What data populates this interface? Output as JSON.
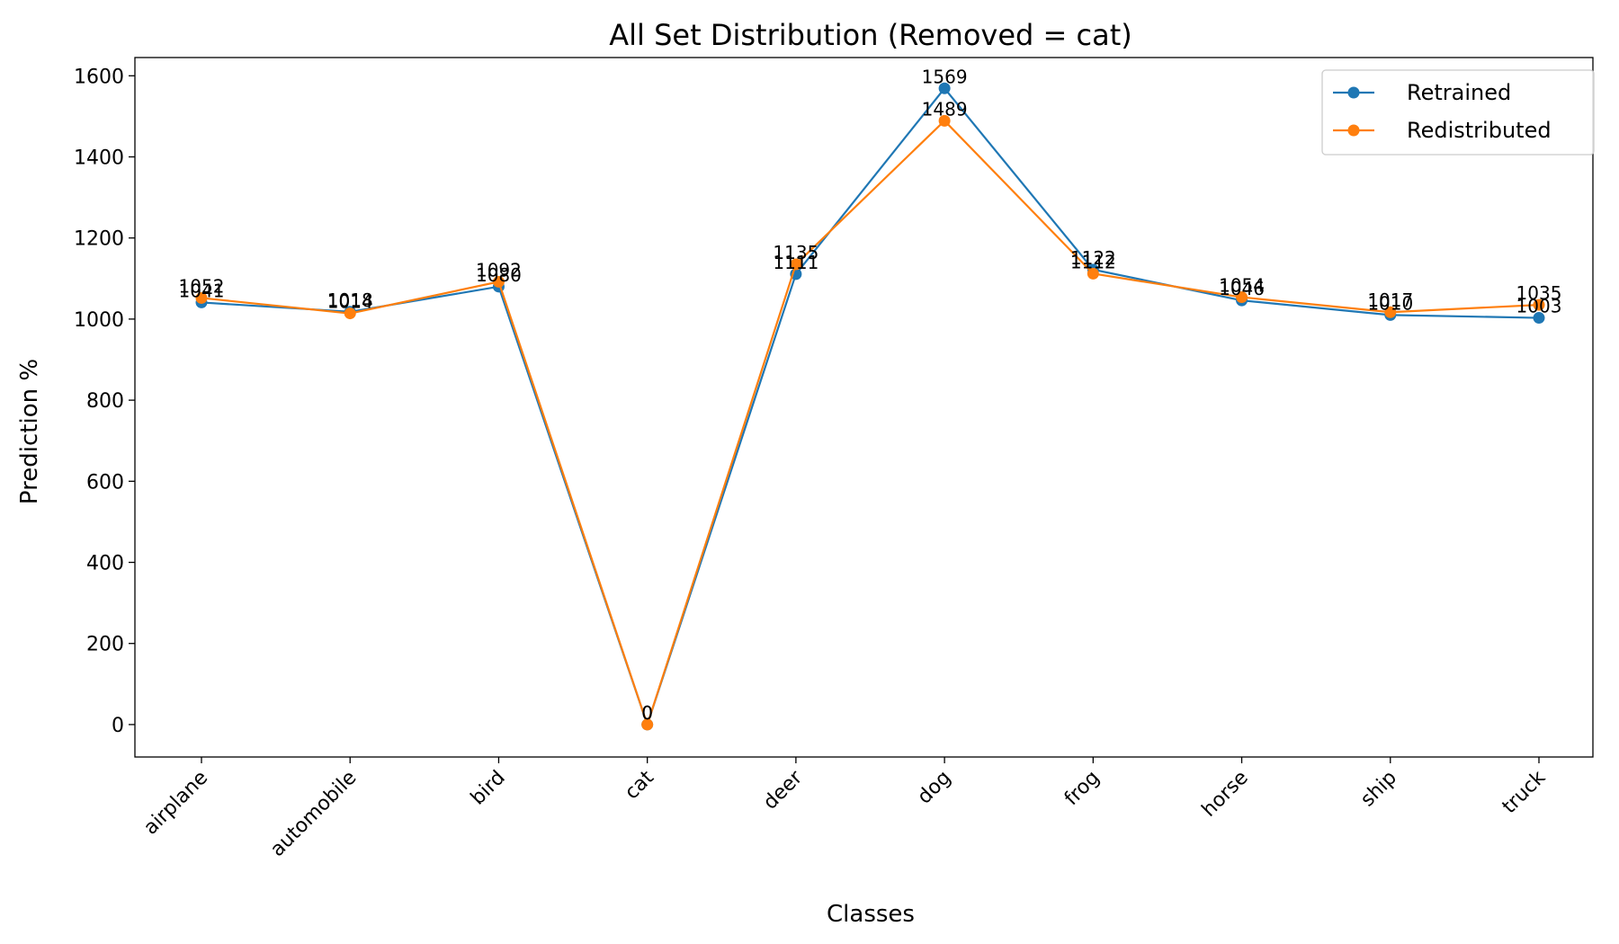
{
  "chart_data": {
    "type": "line",
    "title": "All Set Distribution (Removed = cat)",
    "xlabel": "Classes",
    "ylabel": "Prediction %",
    "categories": [
      "airplane",
      "automobile",
      "bird",
      "cat",
      "deer",
      "dog",
      "frog",
      "horse",
      "ship",
      "truck"
    ],
    "ylim": [
      -80,
      1645
    ],
    "yticks": [
      0,
      200,
      400,
      600,
      800,
      1000,
      1200,
      1400,
      1600
    ],
    "legend_position": "top-right",
    "series": [
      {
        "name": "Retrained",
        "color": "#1f77b4",
        "values": [
          1041,
          1018,
          1080,
          0,
          1111,
          1569,
          1122,
          1046,
          1010,
          1003
        ]
      },
      {
        "name": "Redistributed",
        "color": "#ff7f0e",
        "values": [
          1052,
          1014,
          1092,
          0,
          1135,
          1489,
          1112,
          1054,
          1017,
          1035
        ]
      }
    ]
  }
}
